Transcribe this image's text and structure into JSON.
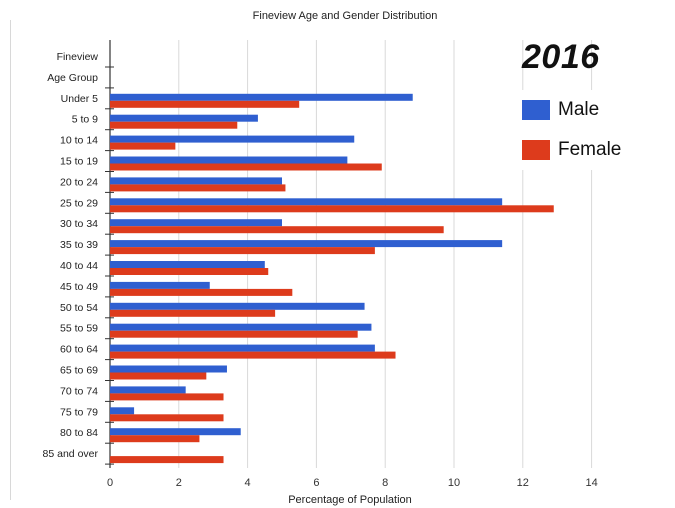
{
  "chart_data": {
    "type": "bar",
    "orientation": "horizontal",
    "title": "Fineview Age and Gender Distribution",
    "annotation": "2016",
    "xlabel": "Percentage of Population",
    "ylabel": "",
    "xlim": [
      0,
      14
    ],
    "xticks": [
      0,
      2,
      4,
      6,
      8,
      10,
      12,
      14
    ],
    "grid": true,
    "legend_placement": "right",
    "categories": [
      "Fineview",
      "Age Group",
      "Under 5",
      "5 to 9",
      "10 to 14",
      "15 to 19",
      "20 to 24",
      "25 to 29",
      "30 to 34",
      "35 to 39",
      "40 to 44",
      "45 to 49",
      "50 to 54",
      "55 to 59",
      "60 to 64",
      "65 to 69",
      "70 to 74",
      "75 to 79",
      "80 to 84",
      "85  and over"
    ],
    "series": [
      {
        "name": "Male",
        "color": "#2f5fd0",
        "values": [
          null,
          null,
          8.8,
          4.3,
          7.1,
          6.9,
          5.0,
          11.4,
          5.0,
          11.4,
          4.5,
          2.9,
          7.4,
          7.6,
          7.7,
          3.4,
          2.2,
          0.7,
          3.8,
          null
        ]
      },
      {
        "name": "Female",
        "color": "#dd3b1c",
        "values": [
          null,
          null,
          5.5,
          3.7,
          1.9,
          7.9,
          5.1,
          12.9,
          9.7,
          7.7,
          4.6,
          5.3,
          4.8,
          7.2,
          8.3,
          2.8,
          3.3,
          3.3,
          2.6,
          3.3
        ]
      }
    ]
  }
}
